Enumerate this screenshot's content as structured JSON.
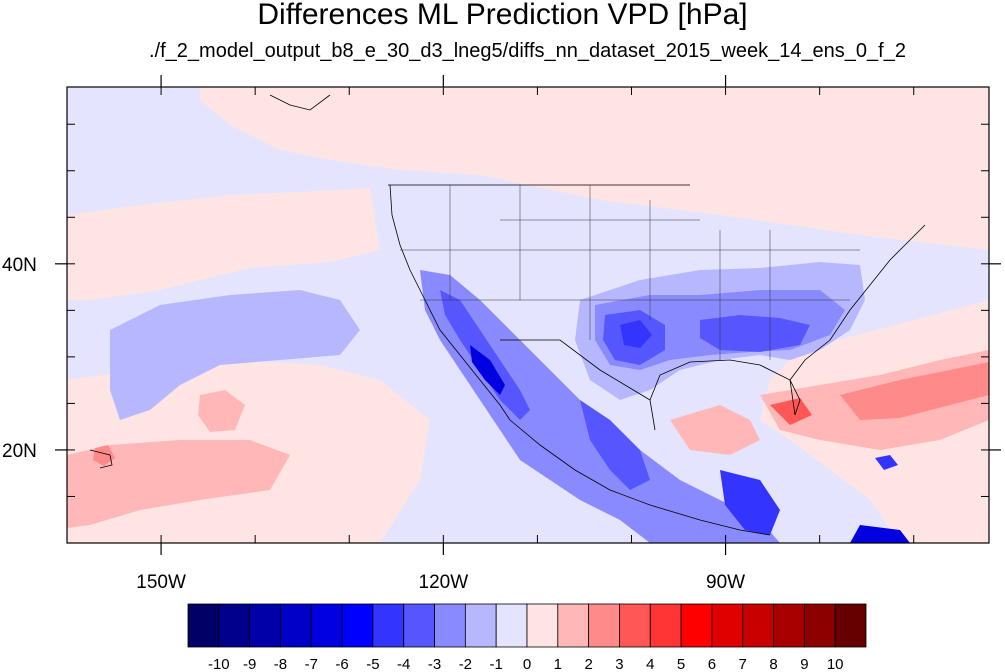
{
  "title": "Differences ML Prediction VPD [hPa]",
  "subtitle": "./f_2_model_output_b8_e_30_d3_lneg5/diffs_nn_dataset_2015_week_14_ens_0_f_2",
  "map": {
    "projection": "cylindrical equidistant",
    "lon_range": [
      -160,
      -62
    ],
    "lat_range": [
      10,
      59
    ],
    "lon_labels": [
      {
        "value": -150,
        "label": "150W"
      },
      {
        "value": -120,
        "label": "120W"
      },
      {
        "value": -90,
        "label": "90W"
      }
    ],
    "lat_labels": [
      {
        "value": 40,
        "label": "40N"
      },
      {
        "value": 20,
        "label": "20N"
      }
    ]
  },
  "colorbar": {
    "labels": [
      "-10",
      "-9",
      "-8",
      "-7",
      "-6",
      "-5",
      "-4",
      "-3",
      "-2",
      "-1",
      "0",
      "1",
      "2",
      "3",
      "4",
      "5",
      "6",
      "7",
      "8",
      "9",
      "10"
    ],
    "colors": [
      "#000066",
      "#00008d",
      "#0000a8",
      "#0000c8",
      "#0000e0",
      "#0000ff",
      "#3434ff",
      "#5656ff",
      "#8a8aff",
      "#b7b7ff",
      "#e4e4ff",
      "#ffe4e4",
      "#ffb7b7",
      "#ff8a8a",
      "#ff5656",
      "#ff3434",
      "#ff0000",
      "#e00000",
      "#c80000",
      "#a80000",
      "#8d0000",
      "#660000"
    ]
  }
}
